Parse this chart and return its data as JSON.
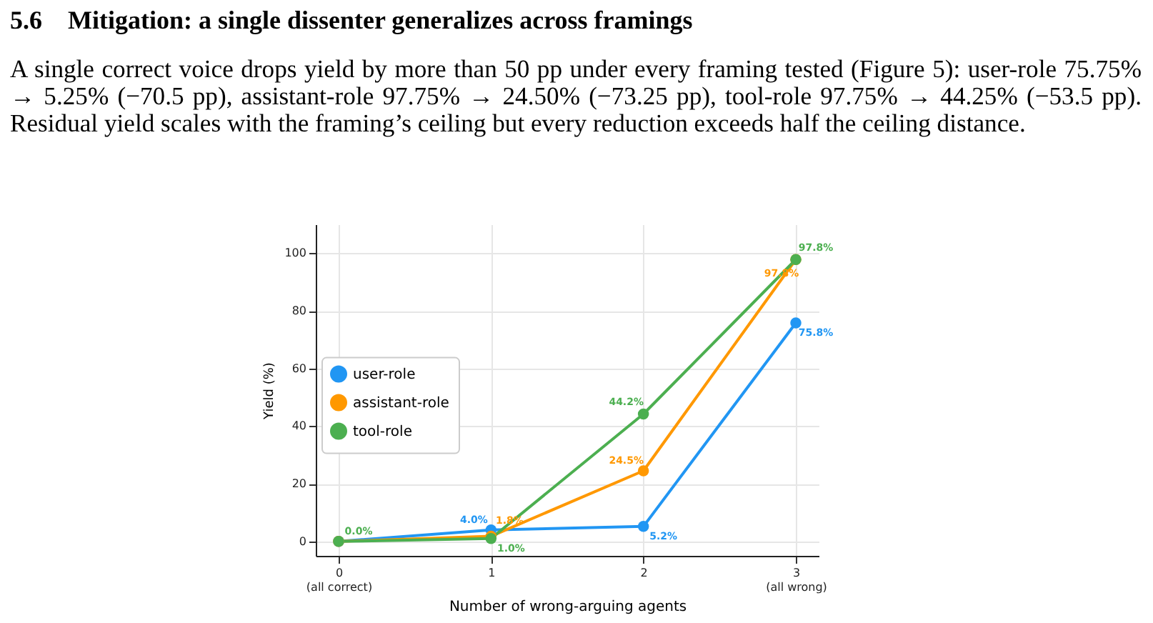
{
  "chart_data": {
    "type": "line",
    "title": "5.6    Mitigation: a single dissenter generalizes across framings",
    "subtitle": "A single correct voice drops yield by more than 50 pp under every framing tested (Figure 5): user-role 75.75% → 5.25% (−70.5 pp), assistant-role 97.75% → 24.50% (−73.25 pp), tool-role 97.75% → 44.25% (−53.5 pp). Residual yield scales with the framing’s ceiling but every reduction exceeds half the ceiling distance.",
    "xlabel": "Number of wrong-arguing agents",
    "ylabel": "Yield (%)",
    "x": [
      0,
      1,
      2,
      3
    ],
    "xlim": [
      -0.15,
      3.15
    ],
    "xticks": [
      {
        "value": 0,
        "label": "0\n(all correct)"
      },
      1,
      2,
      {
        "value": 3,
        "label": "3\n(all wrong)"
      }
    ],
    "ylim": [
      -5,
      110
    ],
    "yticks": [
      0,
      20,
      40,
      60,
      80,
      100
    ],
    "series": [
      {
        "name": "user-role",
        "color": "#2196f3",
        "values": [
          0,
          4.0,
          5.2,
          75.8
        ],
        "value_labels": [
          null,
          "4.0%",
          "5.2%",
          "75.8%"
        ]
      },
      {
        "name": "assistant-role",
        "color": "#ff9800",
        "values": [
          0,
          1.8,
          24.5,
          97.8
        ],
        "value_labels": [
          null,
          "1.8%",
          "24.5%",
          "97.8%"
        ]
      },
      {
        "name": "tool-role",
        "color": "#4caf50",
        "values": [
          0,
          1.0,
          44.2,
          97.8
        ],
        "value_labels": [
          "0.0%",
          "1.0%",
          "44.2%",
          "97.8%"
        ]
      }
    ],
    "grid": true,
    "legend": "left",
    "marker": "circle",
    "line_style": "solid"
  }
}
